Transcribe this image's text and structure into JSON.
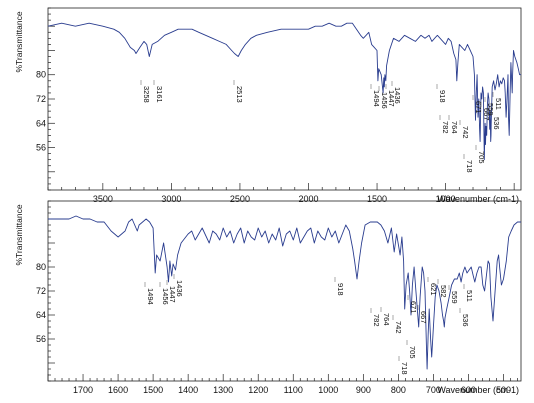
{
  "chart_data": [
    {
      "type": "line",
      "ylabel": "%Transmittance",
      "xlabel": "Wavenumber (cm-1)",
      "xlim": [
        3900,
        450
      ],
      "ylim": [
        42,
        102
      ],
      "yticks": [
        56,
        64,
        72,
        80
      ],
      "xticks": [
        3500,
        3000,
        2500,
        2000,
        1500,
        1000
      ],
      "grid": false,
      "color": "#2a3d8f",
      "peak_labels": [
        "3258",
        "3161",
        "2513",
        "1494",
        "1456",
        "1447",
        "1436",
        "918",
        "782",
        "764",
        "742",
        "718",
        "705",
        "671",
        "667",
        "559",
        "536",
        "511"
      ],
      "series": [
        {
          "x": [
            3900,
            3800,
            3700,
            3600,
            3500,
            3420,
            3380,
            3340,
            3300,
            3270,
            3258,
            3230,
            3200,
            3180,
            3161,
            3140,
            3100,
            3050,
            3000,
            2950,
            2900,
            2850,
            2800,
            2700,
            2650,
            2600,
            2560,
            2540,
            2513,
            2490,
            2460,
            2420,
            2380,
            2300,
            2200,
            2100,
            2000,
            1950,
            1900,
            1850,
            1800,
            1760,
            1720,
            1680,
            1650,
            1620,
            1600,
            1580,
            1560,
            1540,
            1520,
            1500,
            1494,
            1488,
            1470,
            1456,
            1451,
            1447,
            1443,
            1436,
            1430,
            1410,
            1380,
            1340,
            1300,
            1260,
            1220,
            1180,
            1150,
            1120,
            1100,
            1080,
            1060,
            1040,
            1020,
            1000,
            980,
            960,
            940,
            925,
            918,
            910,
            900,
            880,
            860,
            840,
            820,
            800,
            790,
            782,
            776,
            770,
            764,
            758,
            752,
            748,
            742,
            736,
            730,
            724,
            718,
            712,
            709,
            705,
            700,
            695,
            690,
            684,
            678,
            675,
            671,
            669,
            667,
            660,
            650,
            640,
            630,
            620,
            610,
            600,
            590,
            580,
            570,
            565,
            559,
            552,
            545,
            541,
            536,
            530,
            524,
            518,
            514,
            511,
            505,
            495,
            480,
            470,
            460,
            450
          ],
          "y": [
            96,
            97,
            96,
            97,
            96,
            95,
            94,
            92,
            89,
            88,
            87,
            89,
            91,
            90,
            86,
            90,
            91,
            93,
            94,
            95,
            95,
            95,
            94,
            92,
            91,
            90,
            88,
            87,
            86,
            88,
            90,
            92,
            93,
            94,
            95,
            95,
            95,
            96,
            96,
            97,
            96,
            96,
            97,
            97,
            95,
            93,
            92,
            93,
            94,
            90,
            89,
            88,
            78,
            82,
            80,
            74,
            79,
            76,
            80,
            78,
            83,
            88,
            92,
            91,
            93,
            92,
            91,
            93,
            92,
            93,
            91,
            92,
            93,
            92,
            91,
            90,
            92,
            91,
            87,
            85,
            78,
            84,
            90,
            89,
            88,
            90,
            88,
            86,
            80,
            65,
            74,
            80,
            66,
            72,
            62,
            58,
            74,
            72,
            76,
            74,
            52,
            64,
            57,
            63,
            60,
            70,
            74,
            72,
            62,
            68,
            58,
            60,
            64,
            76,
            78,
            75,
            77,
            80,
            76,
            78,
            77,
            79,
            78,
            74,
            66,
            72,
            80,
            66,
            60,
            72,
            84,
            78,
            74,
            80,
            88,
            86,
            84,
            82,
            80,
            80
          ]
        }
      ]
    },
    {
      "type": "line",
      "ylabel": "%Transmittance",
      "xlabel": "Wavenumber (cm-1)",
      "xlim": [
        1800,
        450
      ],
      "ylim": [
        42,
        102
      ],
      "yticks": [
        56,
        64,
        72,
        80
      ],
      "xticks": [
        1700,
        1600,
        1500,
        1400,
        1300,
        1200,
        1100,
        1000,
        900,
        800,
        700,
        600,
        500
      ],
      "grid": false,
      "color": "#2a3d8f",
      "peak_labels": [
        "1494",
        "1456",
        "1447",
        "1436",
        "918",
        "782",
        "764",
        "742",
        "718",
        "705",
        "667",
        "671",
        "621",
        "582",
        "559",
        "536",
        "511"
      ],
      "series": [
        {
          "x": [
            1800,
            1760,
            1740,
            1720,
            1700,
            1680,
            1660,
            1640,
            1620,
            1610,
            1600,
            1580,
            1570,
            1560,
            1545,
            1540,
            1530,
            1520,
            1510,
            1500,
            1494,
            1490,
            1480,
            1470,
            1460,
            1456,
            1452,
            1447,
            1443,
            1436,
            1430,
            1420,
            1400,
            1390,
            1380,
            1370,
            1360,
            1340,
            1330,
            1320,
            1310,
            1300,
            1290,
            1280,
            1270,
            1260,
            1250,
            1240,
            1230,
            1220,
            1210,
            1200,
            1190,
            1180,
            1170,
            1160,
            1150,
            1140,
            1130,
            1120,
            1110,
            1100,
            1090,
            1080,
            1070,
            1060,
            1050,
            1040,
            1030,
            1020,
            1010,
            1000,
            990,
            980,
            970,
            960,
            950,
            940,
            930,
            925,
            918,
            912,
            905,
            895,
            880,
            870,
            860,
            850,
            840,
            830,
            820,
            812,
            805,
            795,
            790,
            785,
            782,
            778,
            772,
            768,
            764,
            760,
            755,
            750,
            746,
            742,
            738,
            732,
            728,
            724,
            720,
            718,
            715,
            712,
            708,
            705,
            700,
            695,
            690,
            684,
            678,
            674,
            671,
            669,
            667,
            662,
            655,
            648,
            640,
            632,
            626,
            621,
            616,
            610,
            604,
            598,
            592,
            586,
            582,
            576,
            570,
            564,
            559,
            554,
            548,
            544,
            540,
            536,
            530,
            524,
            518,
            514,
            511,
            506,
            500,
            492,
            485,
            478,
            470,
            460,
            450
          ],
          "y": [
            96,
            96,
            96,
            97,
            96,
            96,
            95,
            95,
            92,
            91,
            90,
            92,
            95,
            96,
            92,
            94,
            95,
            96,
            95,
            93,
            78,
            84,
            82,
            88,
            80,
            75,
            82,
            77,
            81,
            79,
            84,
            88,
            91,
            92,
            89,
            91,
            93,
            88,
            92,
            91,
            89,
            93,
            90,
            92,
            88,
            91,
            93,
            88,
            92,
            90,
            89,
            93,
            90,
            92,
            88,
            91,
            89,
            93,
            87,
            91,
            92,
            89,
            93,
            88,
            90,
            92,
            93,
            88,
            92,
            90,
            89,
            93,
            90,
            92,
            88,
            91,
            94,
            92,
            86,
            82,
            76,
            82,
            88,
            94,
            95,
            95,
            95,
            94,
            92,
            88,
            93,
            85,
            91,
            84,
            90,
            82,
            66,
            74,
            78,
            72,
            64,
            74,
            80,
            72,
            66,
            60,
            70,
            80,
            78,
            72,
            54,
            46,
            58,
            66,
            56,
            50,
            60,
            70,
            74,
            72,
            68,
            64,
            62,
            60,
            63,
            66,
            70,
            74,
            76,
            76,
            78,
            75,
            78,
            80,
            78,
            79,
            80,
            77,
            75,
            78,
            80,
            80,
            74,
            72,
            78,
            82,
            81,
            70,
            62,
            72,
            82,
            84,
            80,
            74,
            76,
            82,
            90,
            92,
            94,
            95,
            95
          ]
        }
      ]
    }
  ]
}
